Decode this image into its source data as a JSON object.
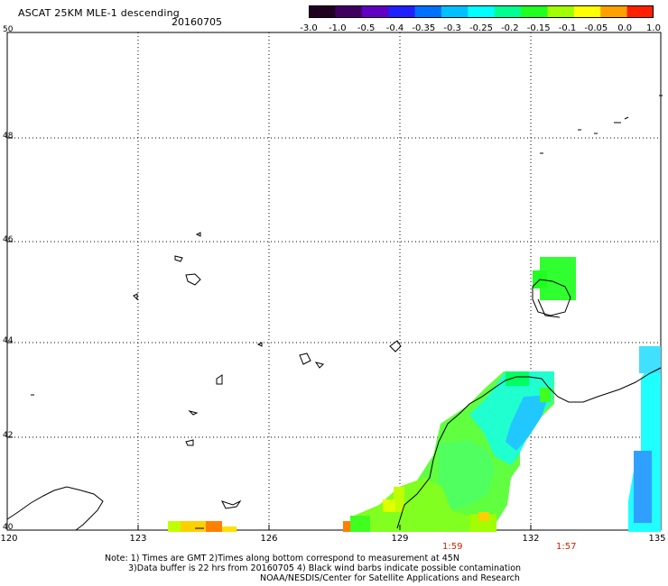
{
  "title": "ASCAT 25KM MLE-1 descending",
  "date": "20160705",
  "colorbar": {
    "labels": [
      "-3.0",
      "-1.0",
      "-0.5",
      "-0.4",
      "-0.35",
      "-0.3",
      "-0.25",
      "-0.2",
      "-0.15",
      "-0.1",
      "-0.05",
      "0.0",
      "1.0"
    ],
    "colors": [
      "#200020",
      "#400060",
      "#6000c0",
      "#2020ff",
      "#0070ff",
      "#00c0ff",
      "#00ffff",
      "#00ff90",
      "#20ff20",
      "#a0ff00",
      "#ffff00",
      "#ffa000",
      "#ff2000"
    ]
  },
  "map": {
    "lat_labels": [
      "50",
      "48",
      "46",
      "44",
      "42",
      "40"
    ],
    "lon_labels": [
      "120",
      "123",
      "126",
      "129",
      "132",
      "135"
    ],
    "time_labels": [
      "1:59",
      "1:57"
    ]
  },
  "notes": {
    "line1": "Note: 1) Times are GMT 2)Times along bottom correspond to measurement at 45N",
    "line2": "3)Data buffer is 22 hrs from 20160705 4) Black wind barbs indicate possible contamination",
    "line3": "NOAA/NESDIS/Center for Satellite Applications and Research"
  }
}
